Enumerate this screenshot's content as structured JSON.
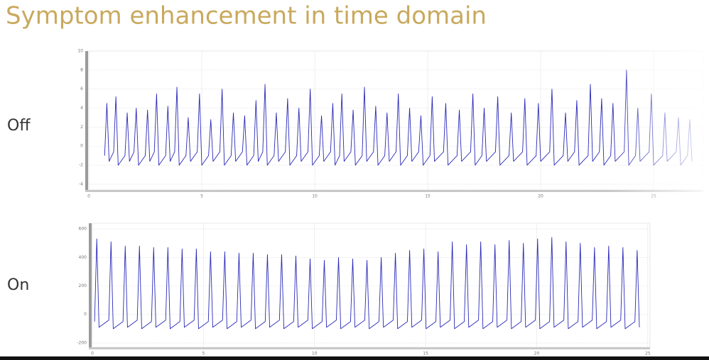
{
  "title": "Symptom enhancement in time domain",
  "chart_data": [
    {
      "type": "line",
      "label": "Off",
      "grid": true,
      "xlim": [
        0,
        27.2
      ],
      "xticks": [
        0,
        5,
        10,
        15,
        20,
        25
      ],
      "ylim": [
        -4.6,
        10
      ],
      "yticks": [
        -4,
        -2,
        0,
        2,
        4,
        6,
        8,
        10
      ],
      "x": [
        0.7,
        0.8,
        0.9,
        1.1,
        1.2,
        1.3,
        1.6,
        1.7,
        1.8,
        2.0,
        2.1,
        2.2,
        2.5,
        2.6,
        2.7,
        2.9,
        3.0,
        3.1,
        3.4,
        3.5,
        3.6,
        3.8,
        3.9,
        4.0,
        4.3,
        4.4,
        4.5,
        4.8,
        4.9,
        5.0,
        5.3,
        5.4,
        5.5,
        5.8,
        5.9,
        6.0,
        6.3,
        6.4,
        6.5,
        6.8,
        6.9,
        7.0,
        7.3,
        7.4,
        7.5,
        7.7,
        7.8,
        7.9,
        8.2,
        8.3,
        8.4,
        8.7,
        8.8,
        8.9,
        9.2,
        9.3,
        9.4,
        9.7,
        9.8,
        9.9,
        10.2,
        10.3,
        10.4,
        10.7,
        10.8,
        10.9,
        11.1,
        11.2,
        11.3,
        11.6,
        11.7,
        11.8,
        12.1,
        12.2,
        12.3,
        12.6,
        12.7,
        12.8,
        13.1,
        13.2,
        13.3,
        13.6,
        13.7,
        13.8,
        14.1,
        14.2,
        14.3,
        14.6,
        14.7,
        14.8,
        15.1,
        15.2,
        15.3,
        15.7,
        15.8,
        15.9,
        16.3,
        16.4,
        16.5,
        16.9,
        17.0,
        17.1,
        17.4,
        17.5,
        17.6,
        18.0,
        18.1,
        18.2,
        18.6,
        18.7,
        18.8,
        19.2,
        19.3,
        19.4,
        19.8,
        19.9,
        20.0,
        20.4,
        20.5,
        20.6,
        21.0,
        21.1,
        21.2,
        21.5,
        21.6,
        21.7,
        22.1,
        22.2,
        22.3,
        22.6,
        22.7,
        22.8,
        23.1,
        23.2,
        23.3,
        23.7,
        23.8,
        23.9,
        24.2,
        24.3,
        24.4,
        24.8,
        24.9,
        25.0,
        25.4,
        25.5,
        25.6,
        26.0,
        26.1,
        26.2,
        26.5,
        26.6,
        26.7
      ],
      "series": [
        {
          "color": "#2a2ab8",
          "values": [
            -1.0,
            4.5,
            -1.6,
            -0.6,
            5.2,
            -2.0,
            -1.0,
            3.5,
            -1.6,
            -0.6,
            4.0,
            -2.0,
            -1.0,
            3.8,
            -1.6,
            -0.6,
            5.5,
            -2.0,
            -1.0,
            4.2,
            -1.6,
            -0.6,
            6.2,
            -2.0,
            -1.0,
            3.0,
            -1.6,
            -0.6,
            5.5,
            -2.0,
            -1.0,
            2.8,
            -1.6,
            -0.6,
            6.0,
            -2.0,
            -1.0,
            3.5,
            -1.6,
            -0.6,
            3.2,
            -2.0,
            -1.0,
            4.8,
            -1.6,
            -0.6,
            6.5,
            -2.0,
            -1.0,
            3.5,
            -1.6,
            -0.6,
            5.0,
            -2.0,
            -1.0,
            4.0,
            -1.6,
            -0.6,
            6.0,
            -2.0,
            -1.0,
            3.2,
            -1.6,
            -0.6,
            4.5,
            -2.0,
            -1.0,
            5.5,
            -1.6,
            -0.6,
            3.8,
            -2.0,
            -1.0,
            6.2,
            -1.6,
            -0.6,
            4.2,
            -2.0,
            -1.0,
            3.5,
            -1.6,
            -0.6,
            5.5,
            -2.0,
            -1.0,
            4.0,
            -1.6,
            -0.6,
            3.2,
            -2.0,
            -1.0,
            5.2,
            -1.6,
            -0.6,
            4.5,
            -2.0,
            -1.0,
            3.8,
            -1.6,
            -0.6,
            5.5,
            -2.0,
            -1.0,
            4.0,
            -1.6,
            -0.6,
            5.2,
            -2.0,
            -1.0,
            3.5,
            -1.6,
            -0.6,
            5.0,
            -2.0,
            -1.0,
            4.5,
            -1.6,
            -0.6,
            6.0,
            -2.0,
            -1.0,
            3.5,
            -1.6,
            -0.6,
            4.8,
            -2.0,
            -1.0,
            6.5,
            -1.6,
            -0.6,
            5.0,
            -2.0,
            -1.0,
            4.5,
            -1.6,
            -0.6,
            8.0,
            -2.0,
            -1.0,
            4.0,
            -1.6,
            -0.6,
            5.5,
            -2.0,
            -1.0,
            3.5,
            -1.6,
            -0.6,
            3.0,
            -2.0,
            -1.0,
            2.8,
            -1.6
          ]
        }
      ]
    },
    {
      "type": "line",
      "label": "On",
      "grid": true,
      "xlim": [
        0,
        25.1
      ],
      "xticks": [
        0,
        5,
        10,
        15,
        20,
        25
      ],
      "ylim": [
        -230,
        640
      ],
      "yticks": [
        -200,
        0,
        200,
        400,
        600
      ],
      "x": [
        0.1,
        0.2,
        0.3,
        0.74,
        0.84,
        0.94,
        1.38,
        1.48,
        1.58,
        2.02,
        2.12,
        2.22,
        2.66,
        2.76,
        2.86,
        3.3,
        3.4,
        3.5,
        3.94,
        4.04,
        4.14,
        4.58,
        4.68,
        4.78,
        5.22,
        5.32,
        5.42,
        5.86,
        5.96,
        6.06,
        6.5,
        6.6,
        6.7,
        7.14,
        7.24,
        7.34,
        7.78,
        7.88,
        7.98,
        8.42,
        8.52,
        8.62,
        9.06,
        9.16,
        9.26,
        9.7,
        9.8,
        9.9,
        10.34,
        10.44,
        10.54,
        10.98,
        11.08,
        11.18,
        11.62,
        11.72,
        11.82,
        12.26,
        12.36,
        12.46,
        12.9,
        13.0,
        13.1,
        13.54,
        13.64,
        13.74,
        14.18,
        14.28,
        14.38,
        14.82,
        14.92,
        15.02,
        15.46,
        15.56,
        15.66,
        16.1,
        16.2,
        16.3,
        16.74,
        16.84,
        16.94,
        17.38,
        17.48,
        17.58,
        18.02,
        18.12,
        18.22,
        18.66,
        18.76,
        18.86,
        19.3,
        19.4,
        19.5,
        19.94,
        20.04,
        20.14,
        20.58,
        20.68,
        20.78,
        21.22,
        21.32,
        21.42,
        21.86,
        21.96,
        22.06,
        22.5,
        22.6,
        22.7,
        23.14,
        23.24,
        23.34,
        23.78,
        23.88,
        23.98,
        24.42,
        24.52,
        24.62
      ],
      "series": [
        {
          "color": "#2a2ab8",
          "values": [
            -50,
            530,
            -90,
            -40,
            510,
            -100,
            -50,
            480,
            -90,
            -40,
            480,
            -100,
            -50,
            470,
            -90,
            -40,
            470,
            -100,
            -50,
            460,
            -90,
            -40,
            460,
            -100,
            -50,
            440,
            -90,
            -40,
            440,
            -100,
            -50,
            430,
            -90,
            -40,
            430,
            -100,
            -50,
            420,
            -90,
            -40,
            420,
            -100,
            -50,
            410,
            -90,
            -40,
            390,
            -100,
            -50,
            380,
            -90,
            -40,
            400,
            -100,
            -50,
            390,
            -90,
            -40,
            380,
            -100,
            -50,
            400,
            -90,
            -40,
            430,
            -100,
            -50,
            450,
            -90,
            -40,
            460,
            -100,
            -50,
            440,
            -90,
            -40,
            510,
            -100,
            -50,
            490,
            -90,
            -40,
            510,
            -100,
            -50,
            490,
            -90,
            -40,
            520,
            -100,
            -50,
            500,
            -90,
            -40,
            530,
            -100,
            -50,
            540,
            -90,
            -40,
            510,
            -100,
            -50,
            500,
            -90,
            -40,
            470,
            -100,
            -50,
            480,
            -90,
            -40,
            470,
            -100,
            -50,
            450,
            -90
          ]
        }
      ]
    }
  ]
}
